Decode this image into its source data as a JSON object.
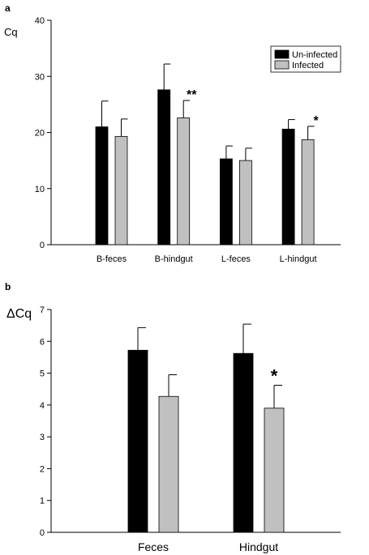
{
  "colors": {
    "uninfected": "#000000",
    "infected": "#c0c0c0",
    "axis": "#000000",
    "background": "#ffffff"
  },
  "chart_data": [
    {
      "panel": "a",
      "type": "bar",
      "ylabel": "Cq",
      "xlabel": "",
      "ylim": [
        0,
        40
      ],
      "yticks": [
        0,
        10,
        20,
        30,
        40
      ],
      "grid": false,
      "legend": "top-right",
      "categories": [
        "B-feces",
        "B-hindgut",
        "L-feces",
        "L-hindgut"
      ],
      "series": [
        {
          "name": "Un-infected",
          "values": [
            21.0,
            27.6,
            15.3,
            20.6
          ],
          "errors": [
            4.6,
            4.6,
            2.3,
            1.7
          ]
        },
        {
          "name": "Infected",
          "values": [
            19.3,
            22.6,
            15.0,
            18.7
          ],
          "errors": [
            3.1,
            3.1,
            2.2,
            2.4
          ]
        }
      ],
      "annotations": [
        {
          "category": "B-hindgut",
          "series": "Infected",
          "text": "**"
        },
        {
          "category": "L-hindgut",
          "series": "Infected",
          "text": "*"
        }
      ]
    },
    {
      "panel": "b",
      "type": "bar",
      "ylabel": "ΔCq",
      "xlabel": "",
      "ylim": [
        0,
        7
      ],
      "yticks": [
        0,
        1,
        2,
        3,
        4,
        5,
        6,
        7
      ],
      "grid": false,
      "categories": [
        "Feces",
        "Hindgut"
      ],
      "series": [
        {
          "name": "Un-infected",
          "values": [
            5.72,
            5.62
          ],
          "errors": [
            0.71,
            0.92
          ]
        },
        {
          "name": "Infected",
          "values": [
            4.27,
            3.9
          ],
          "errors": [
            0.68,
            0.72
          ]
        }
      ],
      "annotations": [
        {
          "category": "Hindgut",
          "series": "Infected",
          "text": "*"
        }
      ]
    }
  ]
}
